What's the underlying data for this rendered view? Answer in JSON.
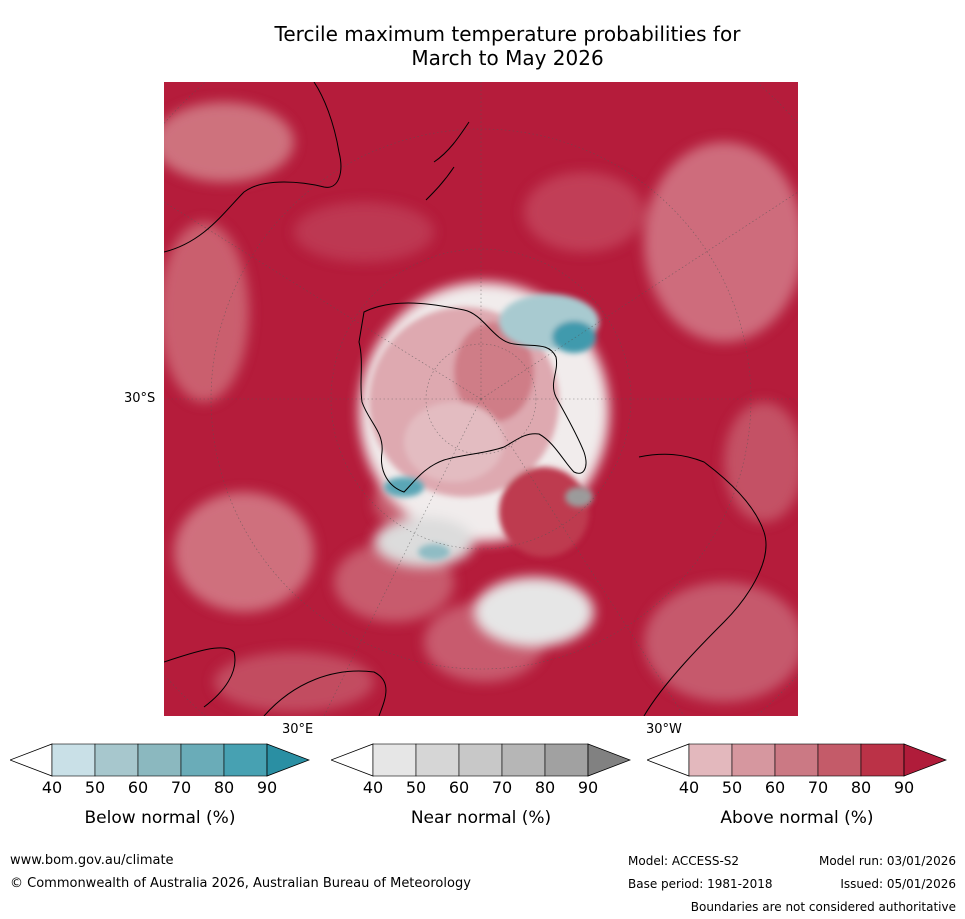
{
  "title_line1": "Tercile maximum temperature probabilities for",
  "title_line2": "March to May 2026",
  "map": {
    "projection": "south-polar-stereographic",
    "lat_label": "30°S",
    "lon_label_east": "30°E",
    "lon_label_west": "30°W"
  },
  "colorbars": [
    {
      "name": "below",
      "label": "Below normal (%)",
      "ticks": [
        "40",
        "50",
        "60",
        "70",
        "80",
        "90"
      ],
      "colors": [
        "#c9e0e7",
        "#a7c7cd",
        "#8bb8bf",
        "#6aacb8",
        "#47a1b2",
        "#2a8fa3"
      ]
    },
    {
      "name": "near",
      "label": "Near normal (%)",
      "ticks": [
        "40",
        "50",
        "60",
        "70",
        "80",
        "90"
      ],
      "colors": [
        "#e6e6e6",
        "#d6d6d6",
        "#c8c8c8",
        "#b6b6b6",
        "#a1a1a1",
        "#818181"
      ]
    },
    {
      "name": "above",
      "label": "Above normal (%)",
      "ticks": [
        "40",
        "50",
        "60",
        "70",
        "80",
        "90"
      ],
      "colors": [
        "#e3b8bd",
        "#d6979f",
        "#cb7984",
        "#c45b69",
        "#bb3247",
        "#b01c3a"
      ]
    }
  ],
  "footer": {
    "website": "www.bom.gov.au/climate",
    "copyright": "© Commonwealth of Australia 2026, Australian Bureau of Meteorology",
    "model": "Model: ACCESS-S2",
    "model_run": "Model run: 03/01/2026",
    "base_period": "Base period: 1981-2018",
    "issued": "Issued: 05/01/2026",
    "disclaimer": "Boundaries are not considered authoritative"
  }
}
